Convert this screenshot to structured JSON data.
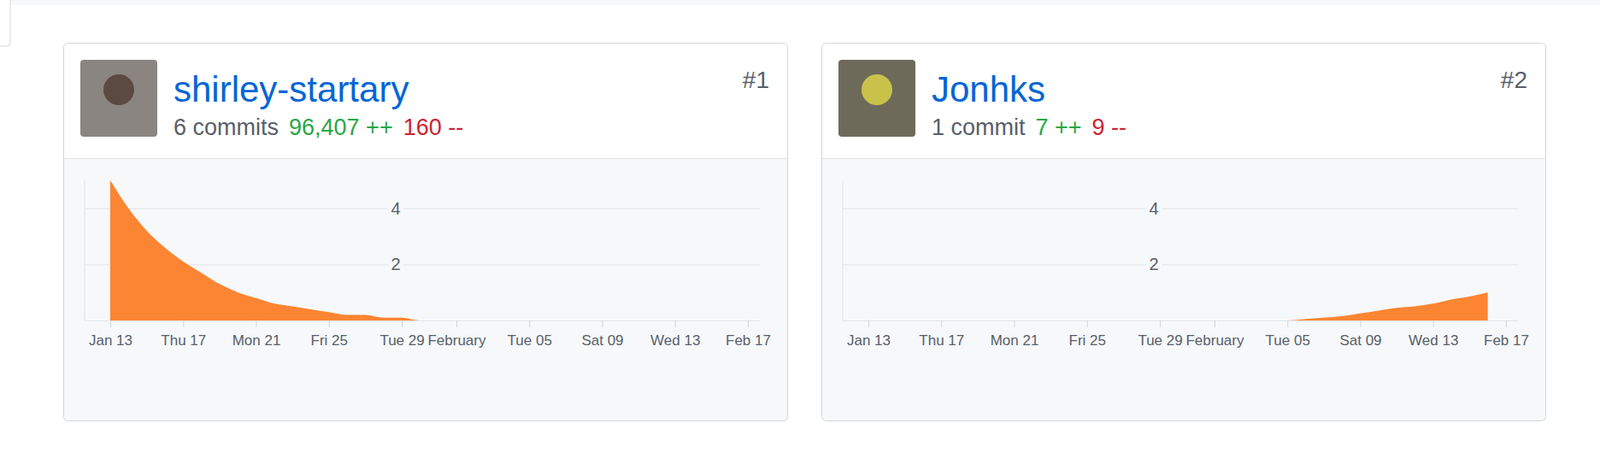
{
  "chart_data": [
    {
      "type": "area",
      "title": "shirley-startary",
      "annotations": [
        "#1",
        "6 commits",
        "96,407 ++",
        "160 --"
      ],
      "categories": [
        "Jan 13",
        null,
        null,
        null,
        "Thu 17",
        null,
        null,
        null,
        "Mon 21",
        null,
        null,
        null,
        "Fri 25",
        null,
        null,
        null,
        "Tue 29",
        null,
        null,
        "February",
        null,
        null,
        null,
        "Tue 05",
        null,
        null,
        null,
        "Sat 09",
        null,
        null,
        null,
        "Wed 13",
        null,
        null,
        null,
        "Feb 17"
      ],
      "values": [
        5,
        4,
        3.2,
        2.6,
        2.1,
        1.7,
        1.3,
        1,
        0.8,
        0.6,
        0.5,
        0.4,
        0.3,
        0.2,
        0.2,
        0.1,
        0.1,
        0,
        0,
        0,
        0,
        0,
        0,
        0,
        0,
        0,
        0,
        0,
        0,
        0,
        0,
        0,
        0,
        0,
        0,
        null
      ],
      "color": "#fb8532",
      "ylim": [
        0,
        5
      ],
      "yticks": [
        2,
        4
      ],
      "grid": true
    },
    {
      "type": "area",
      "title": "Jonhks",
      "annotations": [
        "#2",
        "1 commit",
        "7 ++",
        "9 --"
      ],
      "categories": [
        "Jan 13",
        null,
        null,
        null,
        "Thu 17",
        null,
        null,
        null,
        "Mon 21",
        null,
        null,
        null,
        "Fri 25",
        null,
        null,
        null,
        "Tue 29",
        null,
        null,
        "February",
        null,
        null,
        null,
        "Tue 05",
        null,
        null,
        null,
        "Sat 09",
        null,
        null,
        null,
        "Wed 13",
        null,
        null,
        null,
        "Feb 17"
      ],
      "values": [
        0,
        0,
        0,
        0,
        0,
        0,
        0,
        0,
        0,
        0,
        0,
        0,
        0,
        0,
        0,
        0,
        0,
        0,
        0,
        0,
        0,
        0,
        0,
        0,
        0.05,
        0.1,
        0.15,
        0.25,
        0.35,
        0.45,
        0.5,
        0.6,
        0.75,
        0.85,
        1,
        null
      ],
      "color": "#fb8532",
      "ylim": [
        0,
        5
      ],
      "yticks": [
        2,
        4
      ],
      "grid": true
    }
  ]
}
